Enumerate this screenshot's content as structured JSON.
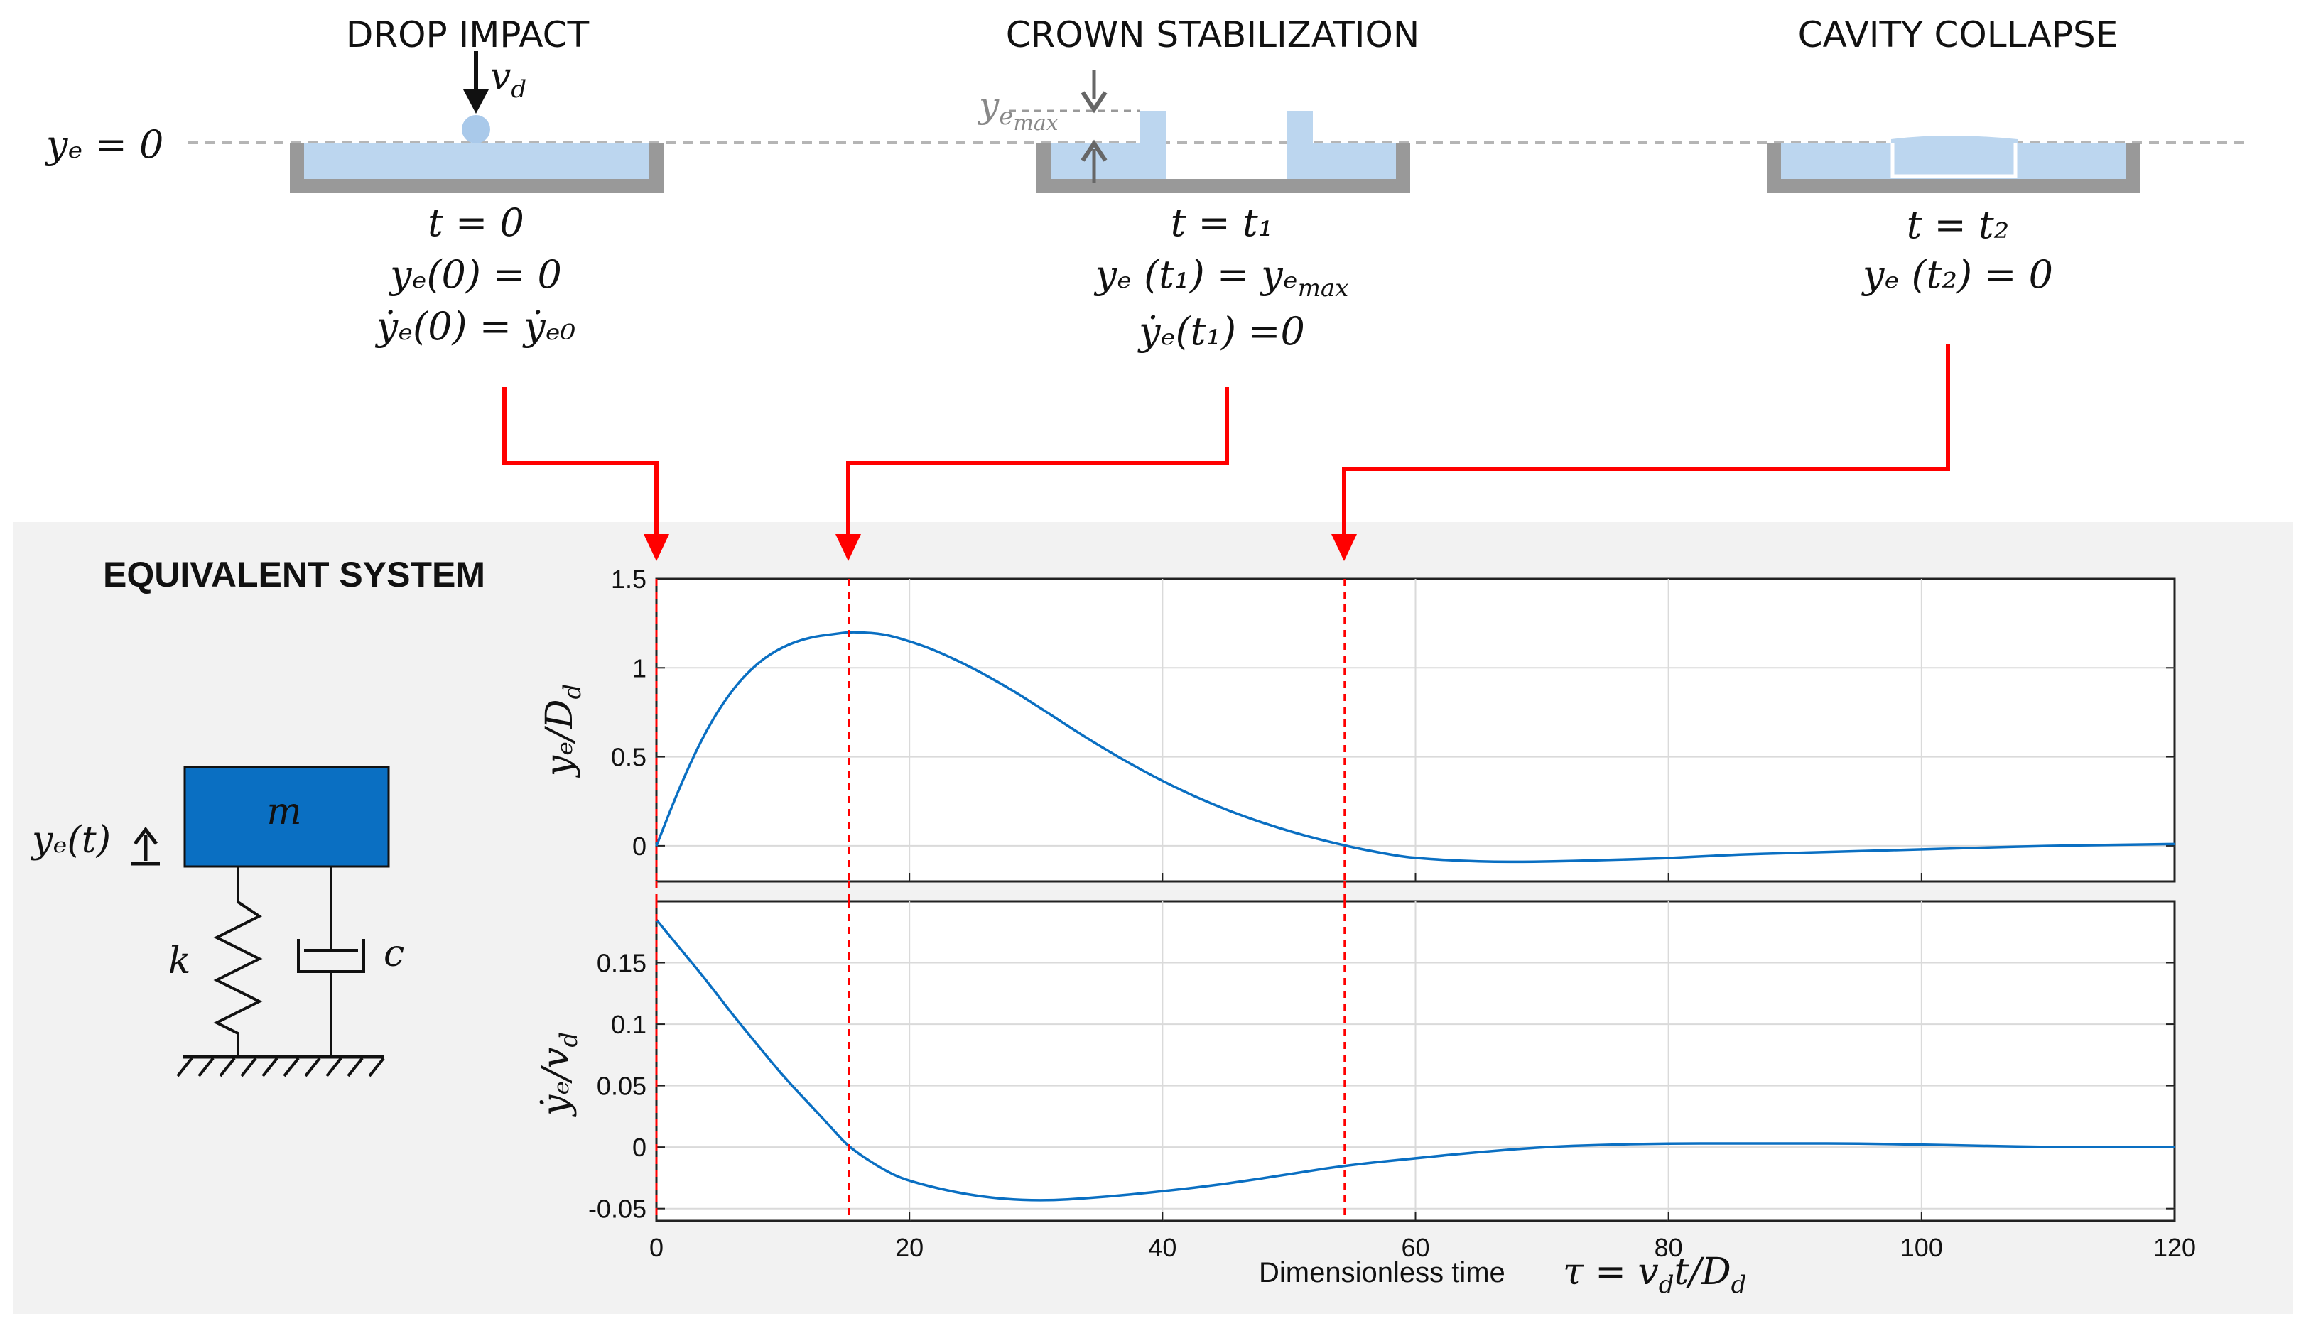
{
  "stages": [
    {
      "title": "DROP IMPACT",
      "eq1": "t = 0",
      "eq2": "yₑ(0) = 0",
      "eq3": "ẏₑ(0) = ẏₑ₀",
      "label_vd": "v",
      "label_vd_sub": "d"
    },
    {
      "title": "CROWN STABILIZATION",
      "eq1": "t = t₁",
      "eq2": "yₑ (t₁) = yₑ",
      "eq2_sub": "max",
      "eq3": "ẏₑ(t₁) =0",
      "label_ymax": "y",
      "label_ymax_sub": "e",
      "label_ymax_subsub": "max"
    },
    {
      "title": "CAVITY COLLAPSE",
      "eq1": "t = t₂",
      "eq2": "yₑ (t₂) = 0"
    }
  ],
  "reference_label": "yₑ = 0",
  "equivalent_system": {
    "title": "EQUIVALENT SYSTEM",
    "mass_label": "m",
    "displacement_label": "yₑ(t)",
    "spring_label": "k",
    "damper_label": "c"
  },
  "colors": {
    "water": "#bcd6ef",
    "droplet": "#a9c9ea",
    "vessel": "#999999",
    "mass": "#0a6fc2",
    "curve": "#0a6fc2",
    "marker": "#ff0000",
    "panel_bg": "#f2f2f2"
  },
  "chart_data": [
    {
      "type": "line",
      "ylabel": "yₑ/D",
      "ylabel_sub": "d",
      "xlim": [
        0,
        120
      ],
      "ylim": [
        -0.2,
        1.5
      ],
      "yticks": [
        0,
        0.5,
        1,
        1.5
      ],
      "ytick_labels": [
        "0",
        "0.5",
        "1",
        "1.5"
      ],
      "xticks": [
        0,
        20,
        40,
        60,
        80,
        100,
        120
      ],
      "grid": true,
      "series": [
        {
          "name": "ye/Dd",
          "x": [
            0,
            2,
            4,
            6,
            8,
            10,
            12,
            14,
            15.2,
            16,
            18,
            20,
            22,
            25,
            28,
            30,
            35,
            40,
            45,
            50,
            54.4,
            58,
            60,
            65,
            70,
            75,
            80,
            85,
            90,
            95,
            100,
            105,
            110,
            115,
            120
          ],
          "y": [
            0,
            0.36,
            0.66,
            0.88,
            1.03,
            1.12,
            1.17,
            1.19,
            1.2,
            1.2,
            1.19,
            1.15,
            1.1,
            1.0,
            0.88,
            0.79,
            0.56,
            0.36,
            0.2,
            0.08,
            0.0,
            -0.05,
            -0.07,
            -0.09,
            -0.09,
            -0.08,
            -0.07,
            -0.05,
            -0.04,
            -0.03,
            -0.02,
            -0.01,
            0.0,
            0.005,
            0.01
          ]
        }
      ],
      "markers_x": [
        0,
        15.2,
        54.4
      ]
    },
    {
      "type": "line",
      "ylabel": "ẏₑ/v",
      "ylabel_sub": "d",
      "xlabel": "Dimensionless time",
      "xlabel_math": "τ = v",
      "xlabel_math_sub1": "d",
      "xlabel_math_mid": "t/D",
      "xlabel_math_sub2": "d",
      "xlim": [
        0,
        120
      ],
      "ylim": [
        -0.06,
        0.2
      ],
      "yticks": [
        -0.05,
        0,
        0.05,
        0.1,
        0.15
      ],
      "ytick_labels": [
        "-0.05",
        "0",
        "0.05",
        "0.1",
        "0.15"
      ],
      "xticks": [
        0,
        20,
        40,
        60,
        80,
        100,
        120
      ],
      "xtick_labels": [
        "0",
        "20",
        "40",
        "60",
        "80",
        "100",
        "120"
      ],
      "grid": true,
      "series": [
        {
          "name": "dye/vd",
          "x": [
            0,
            2,
            4,
            6,
            8,
            10,
            12,
            14,
            15.2,
            18,
            20,
            25,
            30,
            35,
            40,
            45,
            50,
            54.4,
            60,
            65,
            70,
            75,
            80,
            85,
            90,
            95,
            100,
            105,
            110,
            115,
            120
          ],
          "y": [
            0.185,
            0.16,
            0.135,
            0.108,
            0.083,
            0.058,
            0.036,
            0.014,
            0.0,
            -0.019,
            -0.028,
            -0.04,
            -0.044,
            -0.041,
            -0.036,
            -0.03,
            -0.022,
            -0.015,
            -0.009,
            -0.004,
            0.0,
            0.002,
            0.003,
            0.003,
            0.003,
            0.003,
            0.002,
            0.001,
            0.0,
            0.0,
            0.0
          ]
        }
      ],
      "markers_x": [
        0,
        15.2,
        54.4
      ]
    }
  ]
}
